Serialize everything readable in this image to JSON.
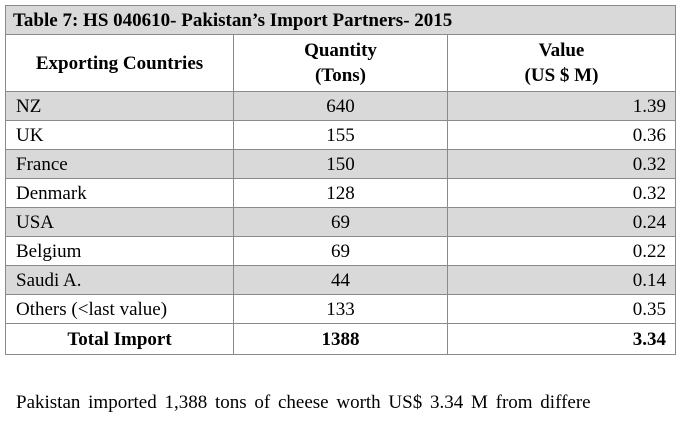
{
  "table": {
    "title": "Table 7: HS 040610- Pakistan’s Import Partners- 2015",
    "headers": {
      "country": "Exporting Countries",
      "quantity_line1": "Quantity",
      "quantity_line2": "(Tons)",
      "value_line1": "Value",
      "value_line2": "(US $ M)"
    },
    "rows": [
      {
        "country": "NZ",
        "quantity": "640",
        "value": "1.39"
      },
      {
        "country": "UK",
        "quantity": "155",
        "value": "0.36"
      },
      {
        "country": "France",
        "quantity": "150",
        "value": "0.32"
      },
      {
        "country": "Denmark",
        "quantity": "128",
        "value": "0.32"
      },
      {
        "country": "USA",
        "quantity": "69",
        "value": "0.24"
      },
      {
        "country": "Belgium",
        "quantity": "69",
        "value": "0.22"
      },
      {
        "country": "Saudi A.",
        "quantity": "44",
        "value": "0.14"
      },
      {
        "country": "Others (<last value)",
        "quantity": "133",
        "value": "0.35"
      }
    ],
    "total": {
      "label": "Total Import",
      "quantity": "1388",
      "value": "3.34"
    },
    "colors": {
      "shade": "#d9d9d9",
      "border": "#8a8a8a"
    }
  },
  "paragraph": {
    "line1": "Pakistan imported 1,388 tons of cheese worth US$ 3.34 M from differe"
  }
}
